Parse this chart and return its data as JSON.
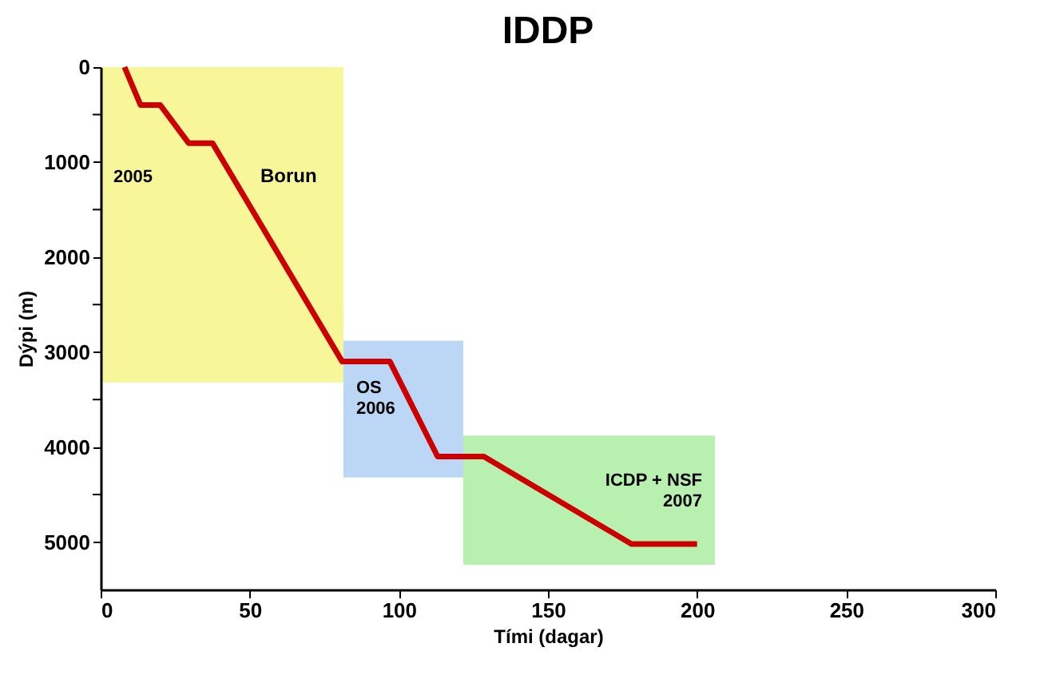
{
  "chart_data": {
    "type": "line",
    "title": "IDDP",
    "xlabel": "Tími (dagar)",
    "ylabel": "Dýpi (m)",
    "x": [
      8,
      13.4,
      20,
      29.5,
      37.5,
      81,
      97,
      113,
      128.5,
      178,
      200
    ],
    "series": [
      {
        "color": "#cc0000",
        "values": [
          0,
          400,
          400,
          800,
          800,
          3100,
          3100,
          4100,
          4100,
          5020,
          5020
        ]
      }
    ],
    "xlim": [
      0,
      300
    ],
    "xticks": [
      0,
      50,
      100,
      150,
      200,
      250,
      300
    ],
    "ylim": [
      5500,
      0
    ],
    "yticks": [
      0,
      {
        "value": 500,
        "label": null
      },
      1000,
      {
        "value": 1500,
        "label": null
      },
      2000,
      {
        "value": 2500,
        "label": null
      },
      3000,
      {
        "value": 3500,
        "label": null
      },
      4000,
      {
        "value": 4500,
        "label": null
      },
      5000
    ],
    "bands": [
      {
        "axis": "x",
        "from": 0,
        "to": 81.4,
        "label": "2005",
        "color": "#f7f79a"
      },
      {
        "axis": "x",
        "from": 81.4,
        "to": 121.6,
        "label": "OS\n2006",
        "color": "#bcd7f5"
      },
      {
        "axis": "x",
        "from": 121.6,
        "to": 206,
        "label": "ICDP + NSF\n2007",
        "color": "#b8f0b0"
      }
    ],
    "annotations": [
      "Borun"
    ],
    "grid": false,
    "line_style": "solid",
    "marker": "none"
  }
}
